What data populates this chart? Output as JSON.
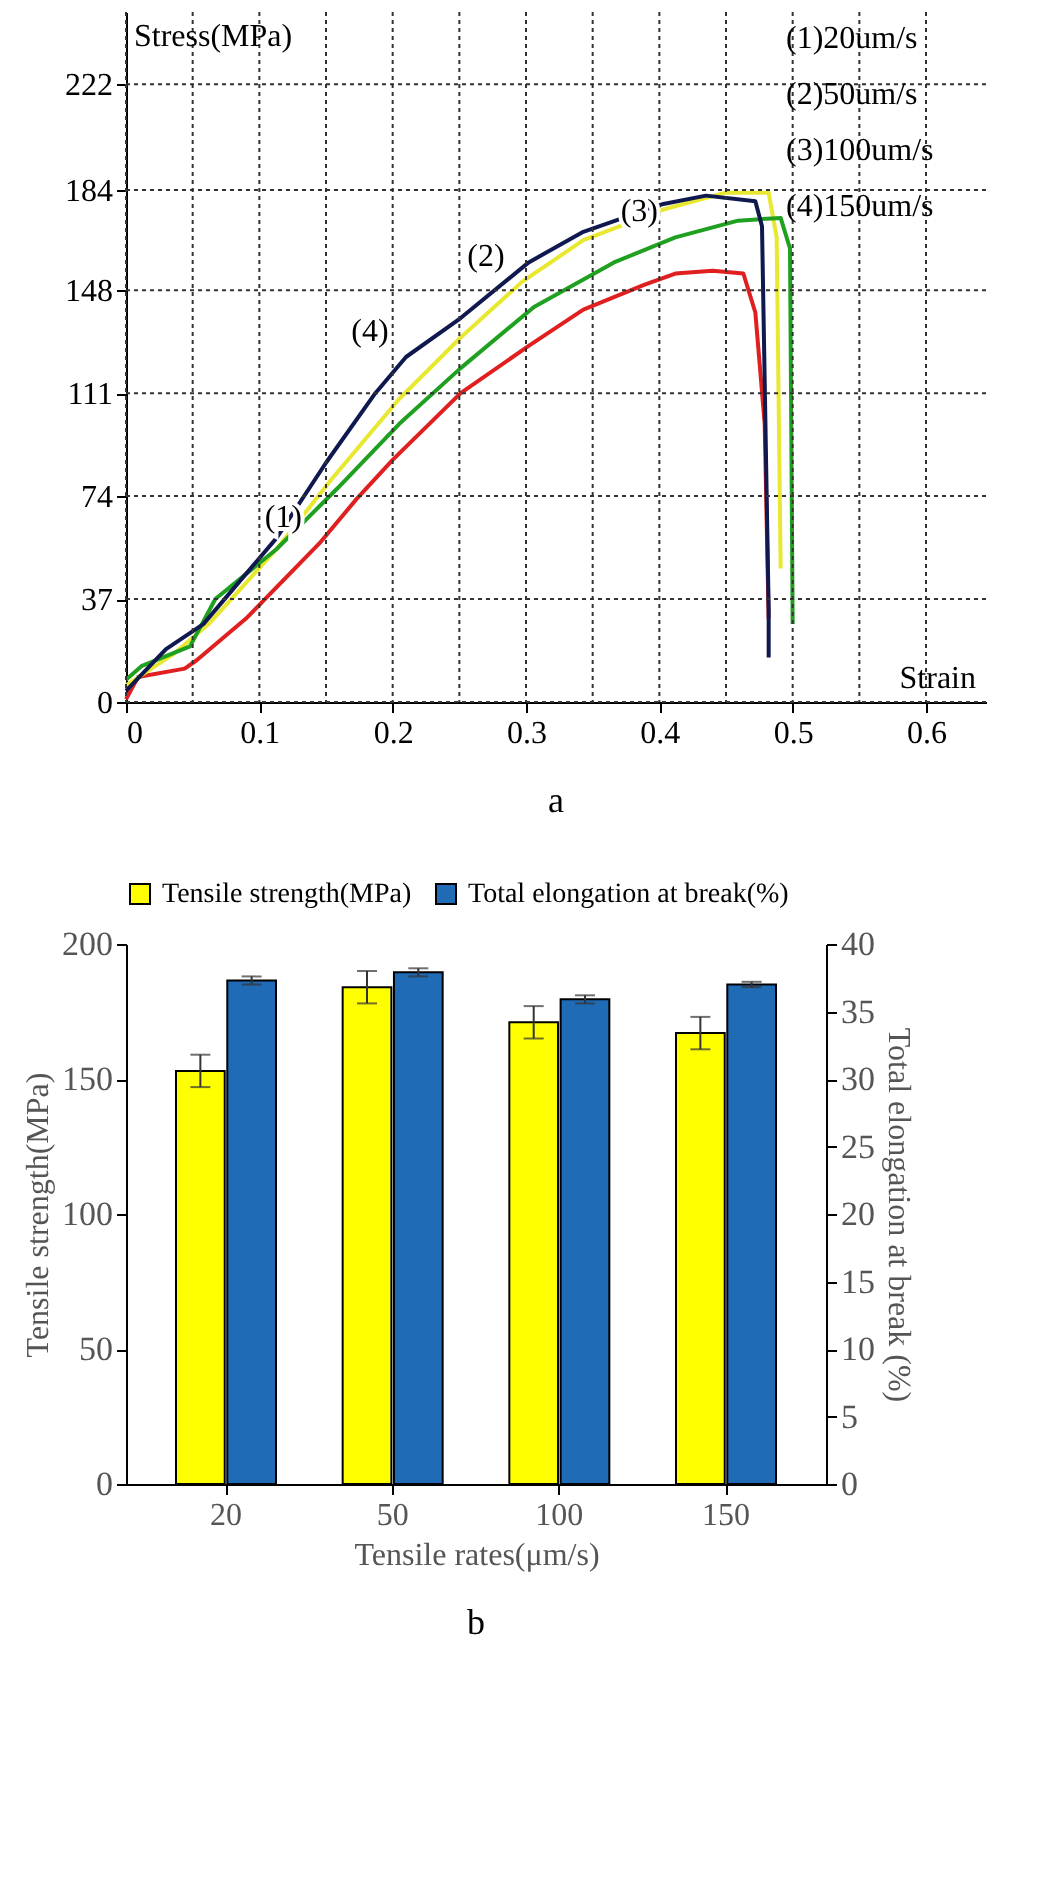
{
  "chart_data": [
    {
      "type": "line",
      "title": "a",
      "xlabel": "Strain",
      "ylabel": "Stress(MPa)",
      "xlim": [
        0,
        0.645
      ],
      "ylim": [
        0,
        248
      ],
      "xticks": [
        0,
        {
          "value": 0.05,
          "label": null
        },
        0.1,
        {
          "value": 0.15,
          "label": null
        },
        0.2,
        {
          "value": 0.25,
          "label": null
        },
        0.3,
        {
          "value": 0.35,
          "label": null
        },
        0.4,
        {
          "value": 0.45,
          "label": null
        },
        0.5,
        {
          "value": 0.55,
          "label": null
        },
        0.6
      ],
      "yticks": [
        0,
        37,
        74,
        111,
        148,
        184,
        222
      ],
      "grid": true,
      "series": [
        {
          "color": "#e02020",
          "x": [
            0,
            0.009,
            0.044,
            0.053,
            0.09,
            0.145,
            0.173,
            0.2,
            0.251,
            0.302,
            0.343,
            0.389,
            0.412,
            0.44,
            0.463,
            0.472,
            0.479,
            0.482
          ],
          "values": [
            1,
            9,
            12,
            15,
            30,
            57,
            73,
            87,
            111,
            128,
            141,
            150,
            154,
            155,
            154,
            140,
            100,
            30
          ]
        },
        {
          "color": "#e8e830",
          "x": [
            0,
            0.035,
            0.062,
            0.113,
            0.154,
            0.205,
            0.251,
            0.297,
            0.343,
            0.403,
            0.449,
            0.482,
            0.488,
            0.491
          ],
          "values": [
            6,
            17,
            28,
            55,
            80,
            109,
            131,
            151,
            166,
            177,
            183,
            183,
            167,
            48
          ]
        },
        {
          "color": "#20a020",
          "x": [
            0,
            0.012,
            0.048,
            0.067,
            0.113,
            0.159,
            0.205,
            0.251,
            0.306,
            0.366,
            0.412,
            0.459,
            0.491,
            0.498,
            0.5
          ],
          "values": [
            8,
            13,
            20,
            37,
            55,
            77,
            100,
            120,
            142,
            158,
            167,
            173,
            174,
            163,
            28
          ]
        },
        {
          "color": "#101850",
          "x": [
            0,
            0.03,
            0.058,
            0.113,
            0.15,
            0.187,
            0.21,
            0.251,
            0.302,
            0.343,
            0.403,
            0.435,
            0.472,
            0.477,
            0.482,
            0.482
          ],
          "values": [
            4,
            19,
            28,
            59,
            86,
            111,
            124,
            138,
            158,
            169,
            179,
            182,
            180,
            171,
            33,
            16
          ]
        }
      ],
      "annotations": [
        "(1)20um/s",
        "(2)50um/s",
        "(3)100um/s",
        "(4)150um/s",
        {
          "text": "(1)",
          "x": 0.145,
          "y": 57
        },
        {
          "text": "(2)",
          "x": 0.297,
          "y": 151
        },
        {
          "text": "(3)",
          "x": 0.412,
          "y": 167
        },
        {
          "text": "(4)",
          "x": 0.21,
          "y": 124
        }
      ]
    },
    {
      "type": "bar",
      "title": "b",
      "xlabel": "Tensile rates(μm/s)",
      "ylabel": "Tensile strength(MPa)",
      "y2label": "Total elongation at break (%)",
      "categories": [
        "20",
        "50",
        "100",
        "150"
      ],
      "ylim": [
        0,
        200
      ],
      "yticks": [
        0,
        50,
        100,
        150,
        200
      ],
      "y2lim": [
        0,
        40
      ],
      "y2ticks": [
        0,
        5,
        10,
        15,
        20,
        25,
        30,
        35,
        40
      ],
      "legend": "top",
      "series": [
        {
          "name": "Tensile strength(MPa)",
          "color": "#ffff00",
          "values": [
            153,
            184,
            171,
            167
          ],
          "errors": [
            6,
            6,
            6,
            6
          ]
        },
        {
          "name": "Total elongation at break(%)",
          "color": "#1f6bb5",
          "axis": "y2",
          "values": [
            37.3,
            37.9,
            35.9,
            37.0
          ],
          "errors": [
            0.3,
            0.3,
            0.3,
            0.2
          ]
        }
      ]
    }
  ]
}
